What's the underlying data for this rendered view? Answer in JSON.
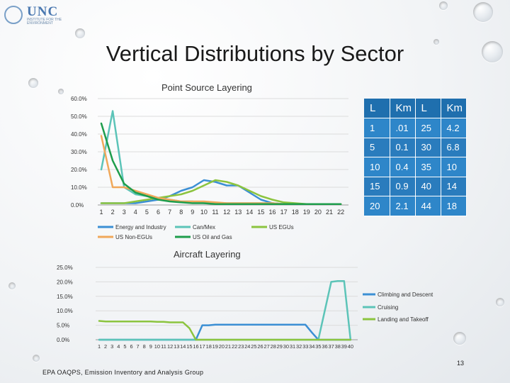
{
  "logo": {
    "name": "UNC",
    "subtitle": "INSTITUTE FOR THE ENVIRONMENT"
  },
  "slide": {
    "title": "Vertical Distributions by Sector",
    "footer": "EPA OAQPS, Emission Inventory and Analysis Group",
    "page_number": "13"
  },
  "table": {
    "header": [
      "L",
      "Km",
      "L",
      "Km"
    ],
    "rows": [
      [
        "1",
        ".01",
        "25",
        "4.2"
      ],
      [
        "5",
        "0.1",
        "30",
        "6.8"
      ],
      [
        "10",
        "0.4",
        "35",
        "10"
      ],
      [
        "15",
        "0.9",
        "40",
        "14"
      ],
      [
        "20",
        "2.1",
        "44",
        "18"
      ]
    ]
  },
  "chart_data": [
    {
      "type": "line",
      "title": "Point Source Layering",
      "ylim": [
        0,
        60
      ],
      "yticks": [
        "0.0%",
        "10.0%",
        "20.0%",
        "30.0%",
        "40.0%",
        "50.0%",
        "60.0%"
      ],
      "grid": true,
      "legend": "bottom",
      "x": [
        "1",
        "2",
        "3",
        "4",
        "5",
        "6",
        "7",
        "8",
        "9",
        "10",
        "11",
        "12",
        "13",
        "14",
        "15",
        "16",
        "17",
        "18",
        "19",
        "20",
        "21",
        "22"
      ],
      "series": [
        {
          "name": "Energy and Industry",
          "color": "#3b8fd4",
          "values": [
            1,
            1,
            1,
            1,
            2,
            3,
            5,
            8,
            10,
            14,
            13,
            11,
            11,
            7,
            3,
            1,
            0.5,
            0.5,
            0.5,
            0.5,
            0.5,
            0.5
          ]
        },
        {
          "name": "Can/Mex",
          "color": "#5cc4b8",
          "values": [
            20,
            53,
            10,
            6,
            5,
            4,
            3,
            2,
            2,
            1,
            1,
            1,
            1,
            1,
            1,
            1,
            0.5,
            0.5,
            0.5,
            0.5,
            0.5,
            0.5
          ]
        },
        {
          "name": "US EGUs",
          "color": "#8cc43f",
          "values": [
            1,
            1,
            1,
            2,
            3,
            4,
            5,
            6,
            8,
            11,
            14,
            13,
            11,
            8,
            5,
            3,
            1.5,
            1,
            0.5,
            0.5,
            0.5,
            0.5
          ]
        },
        {
          "name": "US Non-EGUs",
          "color": "#f0a85a",
          "values": [
            39,
            10,
            10,
            8,
            6,
            4,
            3,
            2,
            2,
            2,
            1.5,
            1,
            1,
            1,
            1,
            1,
            0.5,
            0.5,
            0.5,
            0.5,
            0.5,
            0.5
          ]
        },
        {
          "name": "US Oil and Gas",
          "color": "#1e9d4c",
          "values": [
            46,
            25,
            12,
            7,
            5,
            3,
            2,
            1.5,
            1,
            1,
            0.5,
            0.5,
            0.5,
            0.5,
            0.5,
            0.5,
            0.5,
            0.5,
            0.5,
            0.5,
            0.5,
            0.5
          ]
        }
      ]
    },
    {
      "type": "line",
      "title": "Aircraft Layering",
      "ylim": [
        0,
        25
      ],
      "yticks": [
        "0.0%",
        "5.0%",
        "10.0%",
        "15.0%",
        "20.0%",
        "25.0%"
      ],
      "grid": true,
      "legend": "right",
      "x": [
        "1",
        "2",
        "3",
        "4",
        "5",
        "6",
        "7",
        "8",
        "9",
        "10",
        "11",
        "12",
        "13",
        "14",
        "15",
        "16",
        "17",
        "18",
        "19",
        "20",
        "21",
        "22",
        "23",
        "24",
        "25",
        "26",
        "27",
        "28",
        "29",
        "30",
        "31",
        "32",
        "33",
        "34",
        "35",
        "36",
        "37",
        "38",
        "39",
        "40"
      ],
      "series": [
        {
          "name": "Climbing and Descent",
          "color": "#3b8fd4",
          "values": [
            0,
            0,
            0,
            0,
            0,
            0,
            0,
            0,
            0,
            0,
            0,
            0,
            0,
            0,
            0,
            0,
            5,
            5,
            5.2,
            5.2,
            5.2,
            5.2,
            5.2,
            5.2,
            5.2,
            5.2,
            5.2,
            5.2,
            5.2,
            5.2,
            5.2,
            5.2,
            5.2,
            2.5,
            0,
            0,
            0,
            0,
            0,
            0
          ]
        },
        {
          "name": "Cruising",
          "color": "#5cc4b8",
          "values": [
            0,
            0,
            0,
            0,
            0,
            0,
            0,
            0,
            0,
            0,
            0,
            0,
            0,
            0,
            0,
            0,
            0,
            0,
            0,
            0,
            0,
            0,
            0,
            0,
            0,
            0,
            0,
            0,
            0,
            0,
            0,
            0,
            0,
            0,
            0,
            10,
            20,
            20.3,
            20.3,
            0
          ]
        },
        {
          "name": "Landing and Takeoff",
          "color": "#8cc43f",
          "values": [
            6.5,
            6.3,
            6.3,
            6.3,
            6.3,
            6.3,
            6.3,
            6.3,
            6.3,
            6.2,
            6.2,
            6,
            6,
            6,
            4,
            0,
            0,
            0,
            0,
            0,
            0,
            0,
            0,
            0,
            0,
            0,
            0,
            0,
            0,
            0,
            0,
            0,
            0,
            0,
            0,
            0,
            0,
            0,
            0,
            0
          ]
        }
      ]
    }
  ]
}
